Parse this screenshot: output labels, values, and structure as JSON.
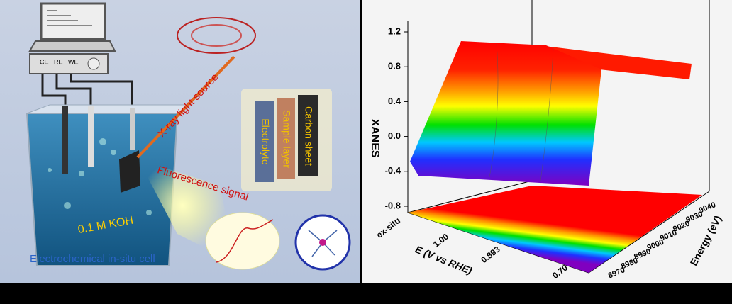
{
  "setup": {
    "electrodes": [
      "CE",
      "RE",
      "WE"
    ],
    "beam_label": "X-ray light source",
    "signal_label": "Fluorescence signal",
    "layers": [
      "Electrolyte",
      "Sample layer",
      "Carbon sheet"
    ],
    "electrolyte": "0.1 M KOH",
    "caption": "Electrochemical in-situ cell"
  },
  "plot": {
    "z_label": "XANES",
    "z_ticks": [
      "1.2",
      "0.8",
      "0.4",
      "0.0",
      "-0.4",
      "-0.8"
    ],
    "x_label": "E (V vs RHE)",
    "x_ticks": [
      "ex-situ",
      "1.00",
      "0.893",
      "0.70"
    ],
    "y_label": "Energy (eV)",
    "y_ticks": [
      "8970",
      "8980",
      "8990",
      "9000",
      "9010",
      "9020",
      "9030",
      "9040"
    ]
  }
}
